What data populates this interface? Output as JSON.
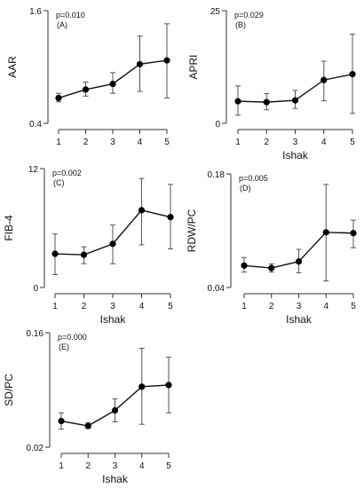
{
  "chart_data": [
    {
      "type": "line",
      "panel_label": "(A)",
      "annotation": "p=0.010",
      "xlabel": "",
      "ylabel": "AAR",
      "x": [
        1,
        2,
        3,
        4,
        5
      ],
      "x_ticks": [
        "1",
        "2",
        "3",
        "4",
        "5"
      ],
      "y_ticks": [
        "0.4",
        "1.6"
      ],
      "ylim": [
        0.4,
        1.6
      ],
      "values": [
        0.67,
        0.76,
        0.82,
        1.03,
        1.07
      ],
      "err_low": [
        0.63,
        0.69,
        0.72,
        0.74,
        0.67
      ],
      "err_high": [
        0.72,
        0.84,
        0.94,
        1.33,
        1.46
      ]
    },
    {
      "type": "line",
      "panel_label": "(B)",
      "annotation": "p=0.029",
      "xlabel": "Ishak",
      "ylabel": "APRI",
      "x": [
        1,
        2,
        3,
        4,
        5
      ],
      "x_ticks": [
        "1",
        "2",
        "3",
        "4",
        "5"
      ],
      "y_ticks": [
        "0",
        "25"
      ],
      "ylim": [
        0,
        25
      ],
      "values": [
        4.9,
        4.7,
        5.1,
        9.6,
        10.9
      ],
      "err_low": [
        1.8,
        3.0,
        3.3,
        5.0,
        2.2
      ],
      "err_high": [
        8.3,
        6.6,
        7.3,
        13.8,
        19.8
      ]
    },
    {
      "type": "line",
      "panel_label": "(C)",
      "annotation": "p=0.002",
      "xlabel": "Ishak",
      "ylabel": "FIB-4",
      "x": [
        1,
        2,
        3,
        4,
        5
      ],
      "x_ticks": [
        "1",
        "2",
        "3",
        "4",
        "5"
      ],
      "y_ticks": [
        "0",
        "12"
      ],
      "ylim": [
        0,
        12
      ],
      "values": [
        3.4,
        3.3,
        4.4,
        7.8,
        7.1
      ],
      "err_low": [
        1.3,
        2.4,
        2.4,
        4.3,
        3.9
      ],
      "err_high": [
        5.4,
        4.1,
        6.3,
        11.0,
        10.4
      ]
    },
    {
      "type": "line",
      "panel_label": "(D)",
      "annotation": "p=0.005",
      "xlabel": "Ishak",
      "ylabel": "RDW/PC",
      "x": [
        1,
        2,
        3,
        4,
        5
      ],
      "x_ticks": [
        "1",
        "2",
        "3",
        "4",
        "5"
      ],
      "y_ticks": [
        "0.04",
        "0.18"
      ],
      "ylim": [
        0.04,
        0.18
      ],
      "values": [
        0.067,
        0.064,
        0.072,
        0.108,
        0.107
      ],
      "err_low": [
        0.059,
        0.059,
        0.058,
        0.048,
        0.089
      ],
      "err_high": [
        0.077,
        0.069,
        0.087,
        0.167,
        0.123
      ]
    },
    {
      "type": "line",
      "panel_label": "(E)",
      "annotation": "p=0.000",
      "xlabel": "Ishak",
      "ylabel": "SD/PC",
      "x": [
        1,
        2,
        3,
        4,
        5
      ],
      "x_ticks": [
        "1",
        "2",
        "3",
        "4",
        "5"
      ],
      "y_ticks": [
        "0.02",
        "0.16"
      ],
      "ylim": [
        0.02,
        0.16
      ],
      "values": [
        0.052,
        0.046,
        0.065,
        0.094,
        0.096
      ],
      "err_low": [
        0.042,
        0.043,
        0.051,
        0.048,
        0.062
      ],
      "err_high": [
        0.062,
        0.05,
        0.079,
        0.141,
        0.13
      ]
    }
  ]
}
